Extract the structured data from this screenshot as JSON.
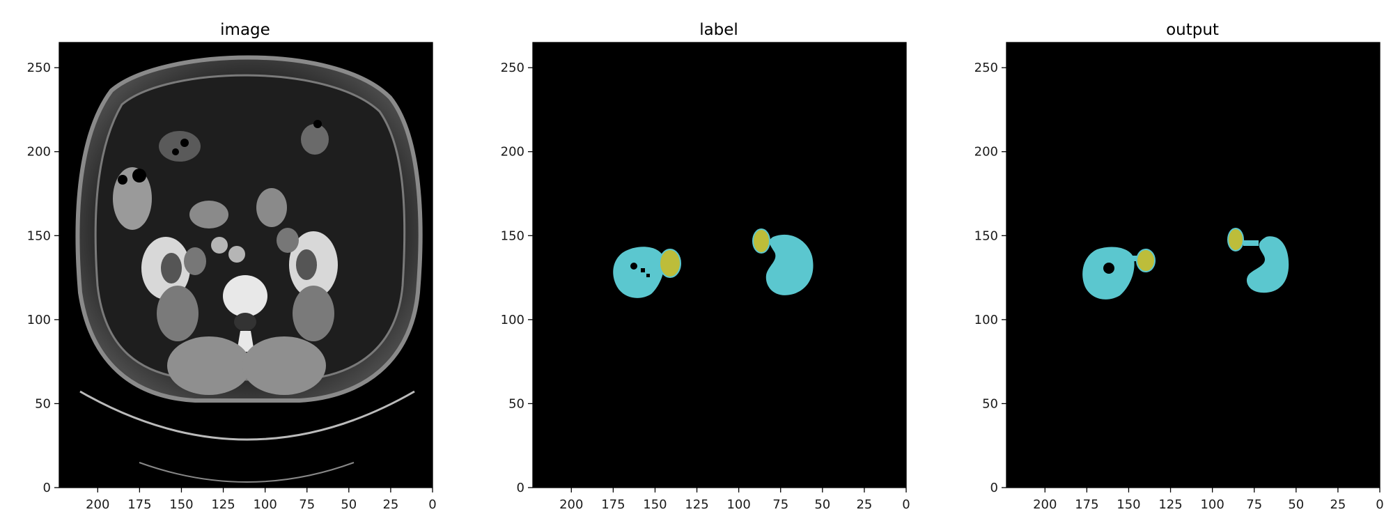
{
  "figure": {
    "panels": [
      {
        "key": "image",
        "title": "image"
      },
      {
        "key": "label",
        "title": "label"
      },
      {
        "key": "output",
        "title": "output"
      }
    ]
  },
  "chart_data": [
    {
      "type": "heatmap",
      "title": "image",
      "xlabel": "",
      "ylabel": "",
      "xlim": [
        223,
        0
      ],
      "ylim": [
        0,
        265
      ],
      "x_ticks": [
        200,
        175,
        150,
        125,
        100,
        75,
        50,
        25,
        0
      ],
      "y_ticks": [
        0,
        50,
        100,
        150,
        200,
        250
      ],
      "content": "CT scan",
      "grid": false
    },
    {
      "type": "heatmap",
      "title": "label",
      "xlabel": "",
      "ylabel": "",
      "xlim": [
        223,
        0
      ],
      "ylim": [
        0,
        265
      ],
      "x_ticks": [
        200,
        175,
        150,
        125,
        100,
        75,
        50,
        25,
        0
      ],
      "y_ticks": [
        0,
        50,
        100,
        150,
        200,
        250
      ],
      "grid": false,
      "colors": {
        "background": "#000000",
        "kidney": "#5bc7cf",
        "tumor": "#bdbd3a"
      }
    },
    {
      "type": "heatmap",
      "title": "output",
      "xlabel": "",
      "ylabel": "",
      "xlim": [
        223,
        0
      ],
      "ylim": [
        0,
        265
      ],
      "x_ticks": [
        200,
        175,
        150,
        125,
        100,
        75,
        50,
        25,
        0
      ],
      "y_ticks": [
        0,
        50,
        100,
        150,
        200,
        250
      ],
      "grid": false,
      "colors": {
        "background": "#000000",
        "kidney": "#5bc7cf",
        "tumor": "#bdbd3a"
      }
    }
  ]
}
